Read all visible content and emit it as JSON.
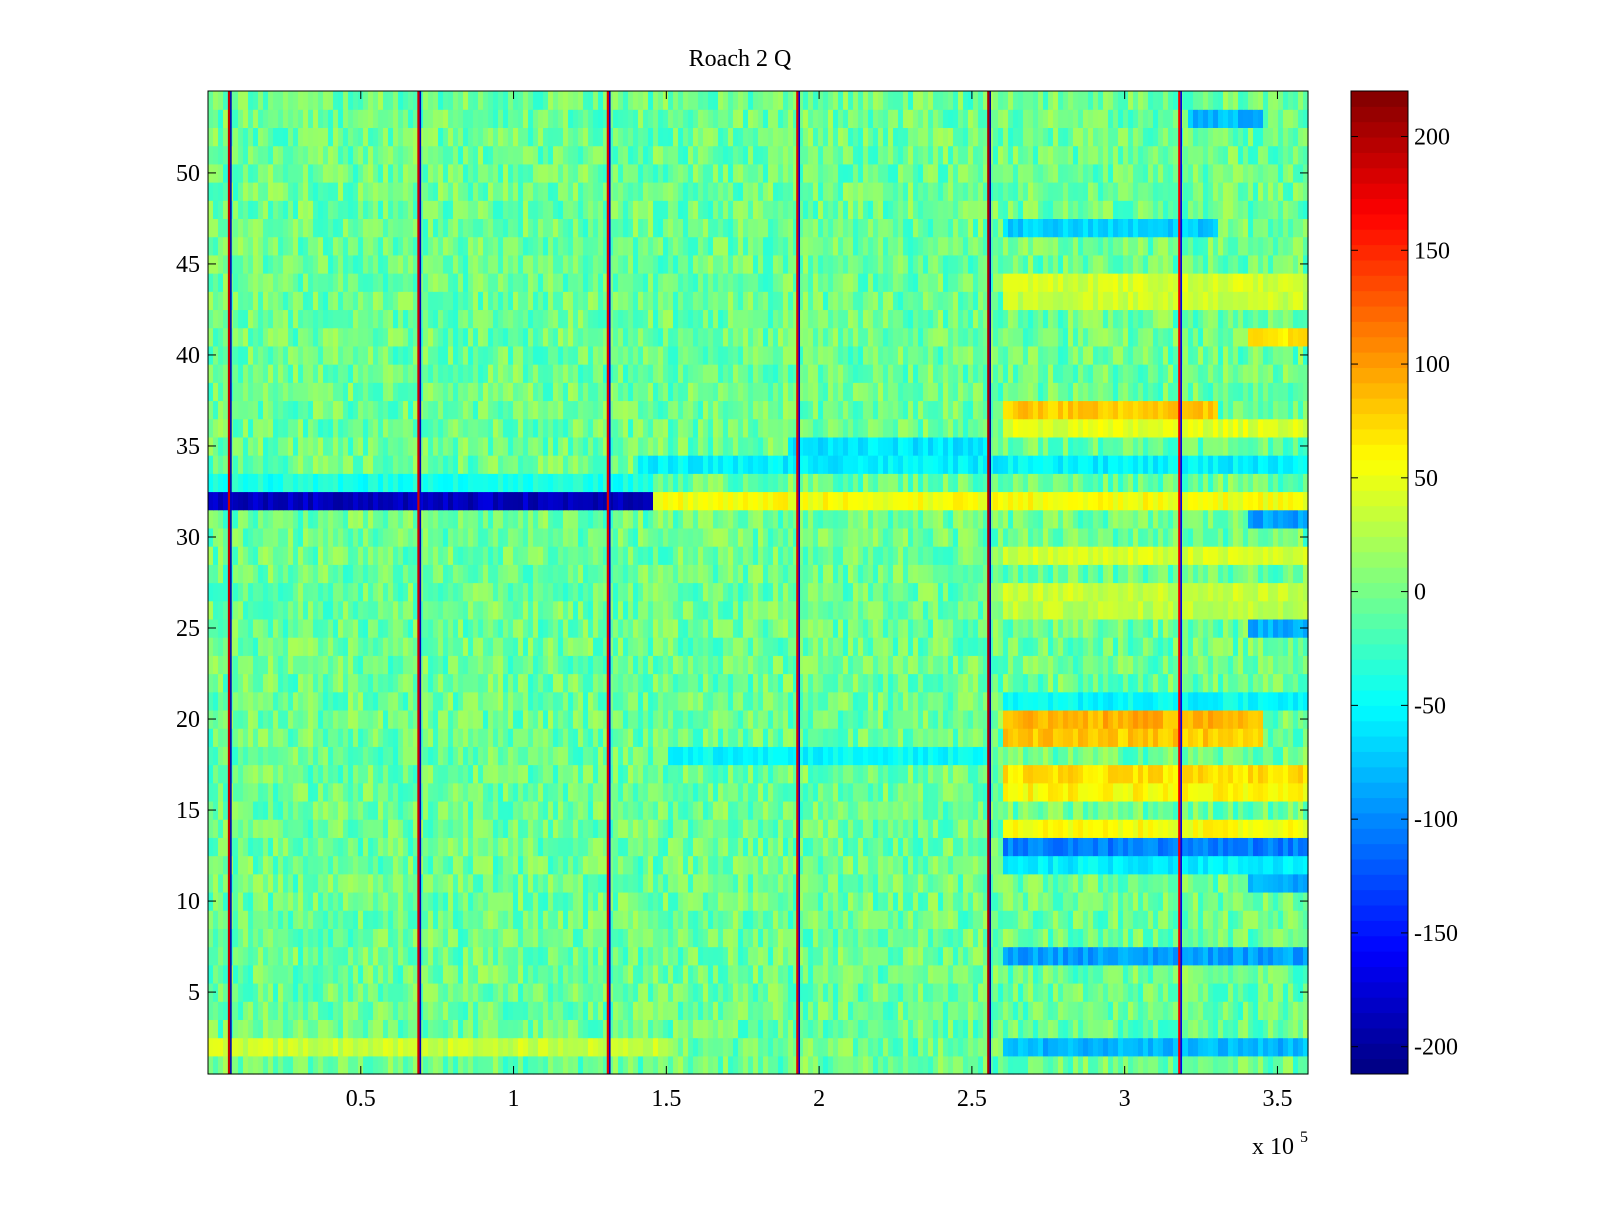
{
  "chart_data": {
    "type": "heatmap",
    "title": "Roach 2 Q",
    "xlabel": "",
    "ylabel": "",
    "x_range": [
      0,
      360000
    ],
    "y_range": [
      0.5,
      54.5
    ],
    "rows": 54,
    "x_multiplier_label": {
      "base": "x 10",
      "exponent": "5"
    },
    "x_ticks": [
      {
        "value": 50000,
        "label": "0.5"
      },
      {
        "value": 100000,
        "label": "1"
      },
      {
        "value": 150000,
        "label": "1.5"
      },
      {
        "value": 200000,
        "label": "2"
      },
      {
        "value": 250000,
        "label": "2.5"
      },
      {
        "value": 300000,
        "label": "3"
      },
      {
        "value": 350000,
        "label": "3.5"
      }
    ],
    "y_ticks": [
      {
        "value": 5,
        "label": "5"
      },
      {
        "value": 10,
        "label": "10"
      },
      {
        "value": 15,
        "label": "15"
      },
      {
        "value": 20,
        "label": "20"
      },
      {
        "value": 25,
        "label": "25"
      },
      {
        "value": 30,
        "label": "30"
      },
      {
        "value": 35,
        "label": "35"
      },
      {
        "value": 40,
        "label": "40"
      },
      {
        "value": 45,
        "label": "45"
      },
      {
        "value": 50,
        "label": "50"
      }
    ],
    "colorbar": {
      "colormap": "jet",
      "range": [
        -212,
        220
      ],
      "ticks": [
        {
          "value": 200,
          "label": "200"
        },
        {
          "value": 150,
          "label": "150"
        },
        {
          "value": 100,
          "label": "100"
        },
        {
          "value": 50,
          "label": "50"
        },
        {
          "value": 0,
          "label": "0"
        },
        {
          "value": -50,
          "label": "-50"
        },
        {
          "value": -100,
          "label": "-100"
        },
        {
          "value": -150,
          "label": "-150"
        },
        {
          "value": -200,
          "label": "-200"
        }
      ]
    },
    "grid": false,
    "legend": "none",
    "base_value": -5,
    "noise_amplitude": 28,
    "dividers": [
      {
        "x": 7000,
        "value": 190
      },
      {
        "x": 69000,
        "value": 185
      },
      {
        "x": 131000,
        "value": 180
      },
      {
        "x": 193000,
        "value": 180
      },
      {
        "x": 255500,
        "value": 200
      },
      {
        "x": 318000,
        "value": 170
      }
    ],
    "features": [
      {
        "row": 32,
        "x_start": 0,
        "x_end": 145000,
        "value": -185
      },
      {
        "row": 33,
        "x_start": 0,
        "x_end": 145000,
        "value": -40
      },
      {
        "row": 32,
        "x_start": 145000,
        "x_end": 360000,
        "value": 55
      },
      {
        "row": 34,
        "x_start": 140000,
        "x_end": 360000,
        "value": -55
      },
      {
        "row": 20,
        "x_start": 260000,
        "x_end": 345000,
        "value": 90
      },
      {
        "row": 19,
        "x_start": 260000,
        "x_end": 345000,
        "value": 80
      },
      {
        "row": 17,
        "x_start": 260000,
        "x_end": 360000,
        "value": 70
      },
      {
        "row": 16,
        "x_start": 260000,
        "x_end": 360000,
        "value": 60
      },
      {
        "row": 14,
        "x_start": 260000,
        "x_end": 360000,
        "value": 55
      },
      {
        "row": 13,
        "x_start": 260000,
        "x_end": 360000,
        "value": -105
      },
      {
        "row": 12,
        "x_start": 260000,
        "x_end": 360000,
        "value": -55
      },
      {
        "row": 11,
        "x_start": 340000,
        "x_end": 360000,
        "value": -85
      },
      {
        "row": 7,
        "x_start": 260000,
        "x_end": 360000,
        "value": -90
      },
      {
        "row": 2,
        "x_start": 260000,
        "x_end": 360000,
        "value": -80
      },
      {
        "row": 37,
        "x_start": 260000,
        "x_end": 330000,
        "value": 80
      },
      {
        "row": 36,
        "x_start": 260000,
        "x_end": 360000,
        "value": 45
      },
      {
        "row": 44,
        "x_start": 260000,
        "x_end": 360000,
        "value": 40
      },
      {
        "row": 43,
        "x_start": 260000,
        "x_end": 360000,
        "value": 35
      },
      {
        "row": 47,
        "x_start": 260000,
        "x_end": 330000,
        "value": -70
      },
      {
        "row": 53,
        "x_start": 320000,
        "x_end": 345000,
        "value": -80
      },
      {
        "row": 31,
        "x_start": 340000,
        "x_end": 360000,
        "value": -90
      },
      {
        "row": 29,
        "x_start": 260000,
        "x_end": 360000,
        "value": 40
      },
      {
        "row": 27,
        "x_start": 260000,
        "x_end": 360000,
        "value": 35
      },
      {
        "row": 26,
        "x_start": 260000,
        "x_end": 360000,
        "value": 30
      },
      {
        "row": 25,
        "x_start": 340000,
        "x_end": 360000,
        "value": -85
      },
      {
        "row": 21,
        "x_start": 260000,
        "x_end": 360000,
        "value": -50
      },
      {
        "row": 41,
        "x_start": 340000,
        "x_end": 360000,
        "value": 70
      },
      {
        "row": 2,
        "x_start": 0,
        "x_end": 150000,
        "value": 35
      },
      {
        "row": 18,
        "x_start": 150000,
        "x_end": 255000,
        "value": -50
      },
      {
        "row": 35,
        "x_start": 190000,
        "x_end": 255000,
        "value": -60
      }
    ]
  }
}
